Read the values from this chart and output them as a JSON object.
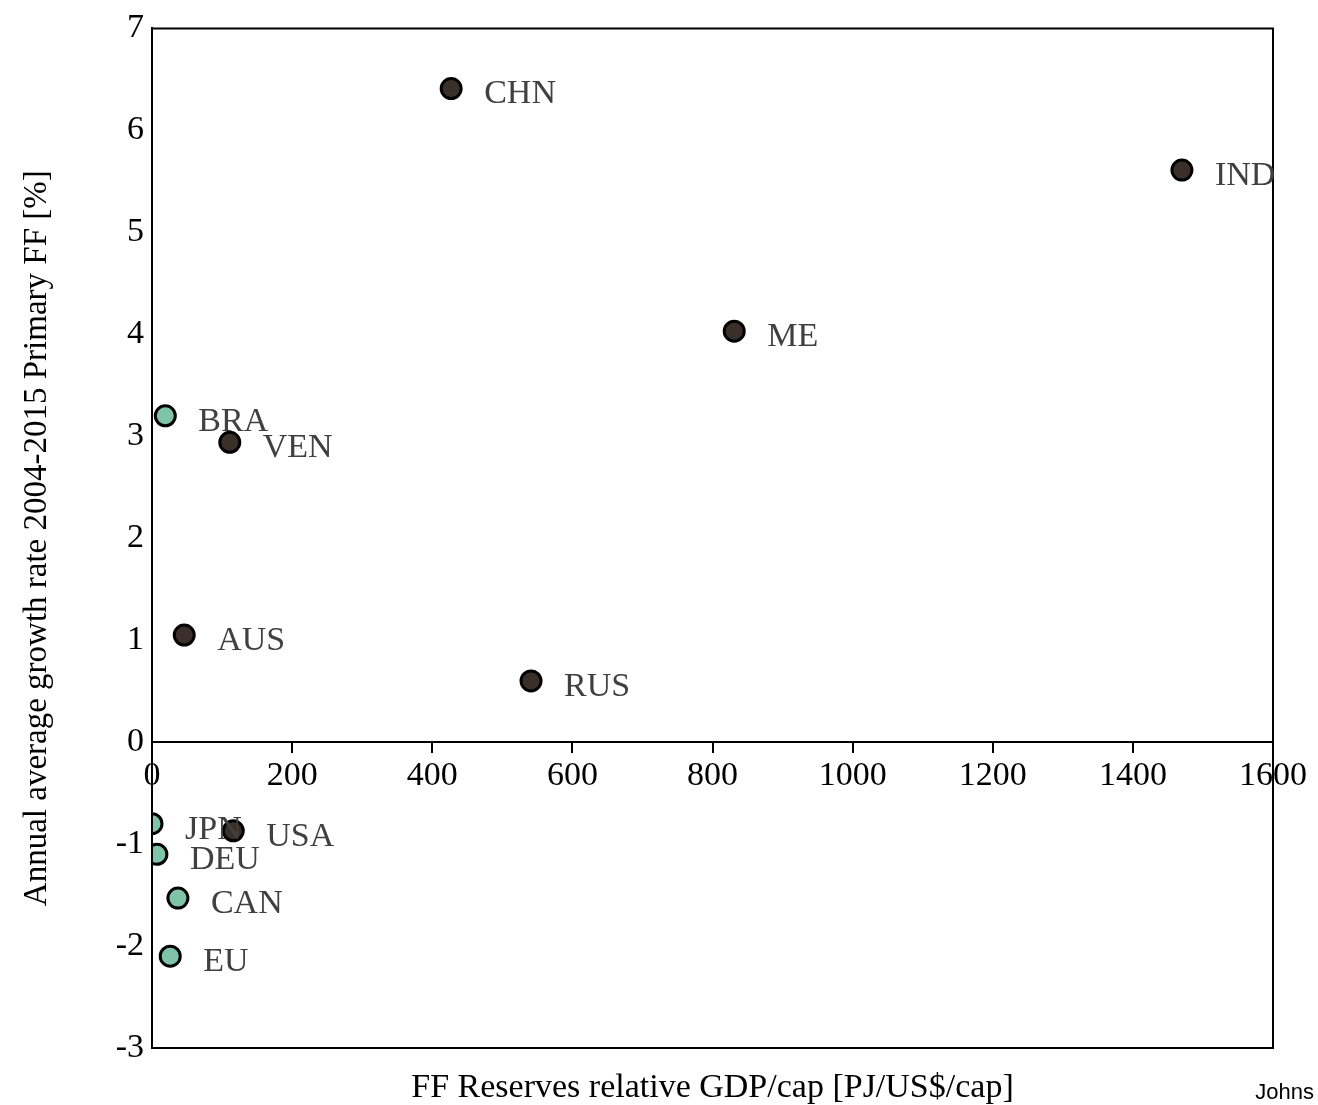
{
  "chart_data": {
    "type": "scatter",
    "xlabel": "FF Reserves relative GDP/cap [PJ/US$/cap]",
    "ylabel": "Annual average growth rate 2004-2015 Primary FF [%]",
    "series": [
      {
        "color": "#3b3029",
        "x": [
          427,
          1470,
          831,
          111,
          46,
          541,
          116
        ],
        "values": [
          6.41,
          5.61,
          4.03,
          2.94,
          1.05,
          0.6,
          -0.87
        ]
      },
      {
        "color": "#7fc4a9",
        "x": [
          19,
          0,
          7,
          37,
          26
        ],
        "values": [
          3.2,
          -0.8,
          -1.1,
          -1.53,
          -2.1
        ]
      }
    ],
    "xlim": [
      0,
      1600
    ],
    "xticks": [
      0,
      200,
      400,
      600,
      800,
      1000,
      1200,
      1400,
      1600
    ],
    "ylim": [
      -3,
      7
    ],
    "yticks": [
      -3,
      -2,
      -1,
      0,
      1,
      2,
      3,
      4,
      5,
      6,
      7
    ],
    "marker": "circle",
    "grid": false,
    "legend": false,
    "annotations": [
      {
        "text": "CHN",
        "x": 427,
        "y": 6.41
      },
      {
        "text": "IND",
        "x": 1470,
        "y": 5.61
      },
      {
        "text": "ME",
        "x": 831,
        "y": 4.03
      },
      {
        "text": "BRA",
        "x": 19,
        "y": 3.2
      },
      {
        "text": "VEN",
        "x": 111,
        "y": 2.94
      },
      {
        "text": "AUS",
        "x": 46,
        "y": 1.05
      },
      {
        "text": "RUS",
        "x": 541,
        "y": 0.6
      },
      {
        "text": "JPN",
        "x": 0,
        "y": -0.8
      },
      {
        "text": "USA",
        "x": 116,
        "y": -0.87
      },
      {
        "text": "DEU",
        "x": 7,
        "y": -1.1
      },
      {
        "text": "CAN",
        "x": 37,
        "y": -1.53
      },
      {
        "text": "EU",
        "x": 26,
        "y": -2.1
      },
      "Johns"
    ]
  }
}
